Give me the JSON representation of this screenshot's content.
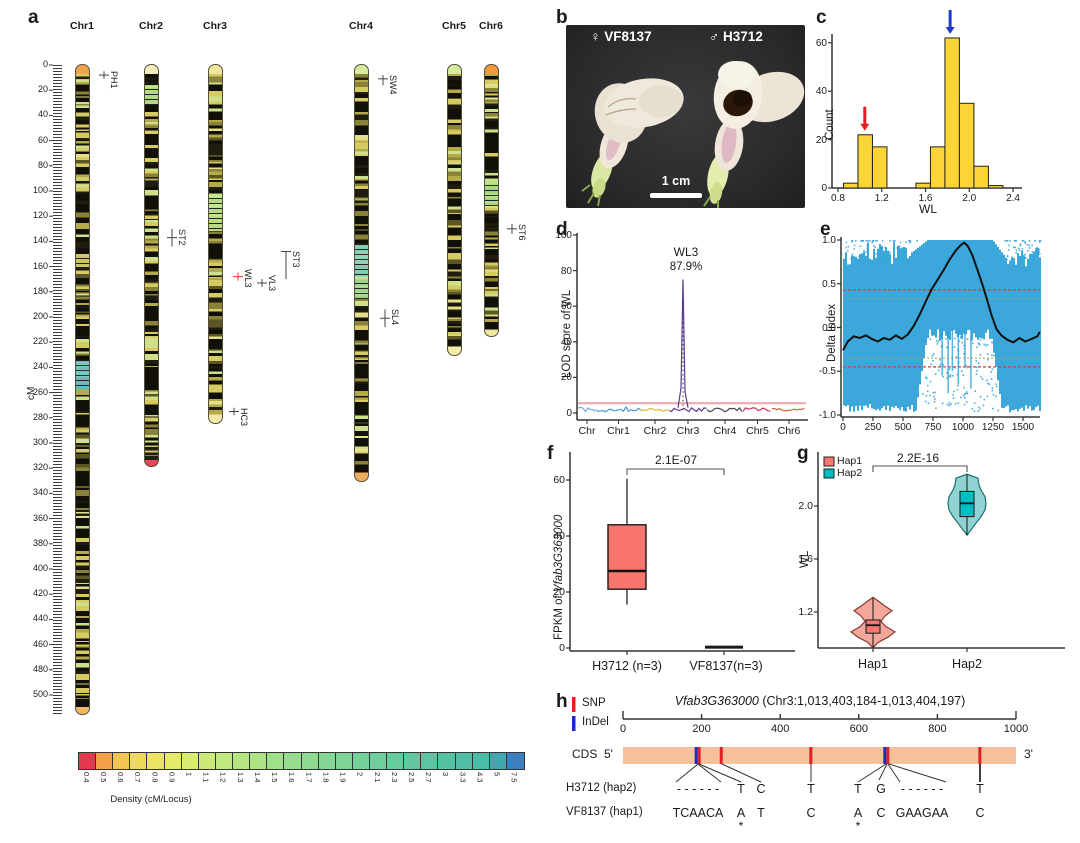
{
  "panels": {
    "a": "a",
    "b": "b",
    "c": "c",
    "d": "d",
    "e": "e",
    "f": "f",
    "g": "g",
    "h": "h"
  },
  "panel_a": {
    "axis_label": "cM",
    "ruler": {
      "label_start": 0,
      "label_end": 500,
      "label_step": 20,
      "max_cM": 515
    },
    "chromosomes": [
      {
        "name": "Chr1",
        "x": 82,
        "length_cM": 515,
        "top_tip": "#F0A24C",
        "bottom_tip": "#F0B964",
        "seed": 11,
        "bands": [
          {
            "start": 235,
            "end": 258,
            "color": "#6FC9C4"
          },
          {
            "start": 150,
            "end": 160,
            "color": "#D9D070"
          }
        ]
      },
      {
        "name": "Chr2",
        "x": 151,
        "length_cM": 318,
        "top_tip": "#F2EBC0",
        "bottom_tip": "#E8455C",
        "seed": 22,
        "bands": [
          {
            "start": 16,
            "end": 32,
            "color": "#BCE68C"
          }
        ]
      },
      {
        "name": "Chr3",
        "x": 215,
        "length_cM": 284,
        "top_tip": "#EFE6A0",
        "bottom_tip": "#F0EAA8",
        "seed": 33,
        "bands": [
          {
            "start": 102,
            "end": 132,
            "color": "#C4E88E"
          }
        ]
      },
      {
        "name": "Chr4",
        "x": 361,
        "length_cM": 330,
        "top_tip": "#D6EC9E",
        "bottom_tip": "#F2AC5E",
        "seed": 44,
        "bands": [
          {
            "start": 143,
            "end": 168,
            "color": "#8ED8C0"
          },
          {
            "start": 170,
            "end": 186,
            "color": "#A8E098"
          }
        ]
      },
      {
        "name": "Chr5",
        "x": 454,
        "length_cM": 230,
        "top_tip": "#D6EC9E",
        "bottom_tip": "#F2ECA8",
        "seed": 55,
        "bands": []
      },
      {
        "name": "Chr6",
        "x": 491,
        "length_cM": 215,
        "top_tip": "#F09A3E",
        "bottom_tip": "#F0E8A0",
        "seed": 66,
        "bands": [
          {
            "start": 92,
            "end": 112,
            "color": "#B2E388"
          }
        ]
      }
    ],
    "markers": [
      {
        "label": "PH1",
        "x": 104,
        "cM": 8,
        "span": [
          5,
          11
        ]
      },
      {
        "label": "ST2",
        "x": 172,
        "cM": 137,
        "span": [
          130,
          144
        ]
      },
      {
        "label": "ST3",
        "x": 286,
        "cM": 148,
        "span": [
          148,
          170
        ]
      },
      {
        "label": "WL3",
        "x": 238,
        "cM": 168,
        "red": true
      },
      {
        "label": "VL3",
        "x": 262,
        "cM": 173
      },
      {
        "label": "SW4",
        "x": 383,
        "cM": 11,
        "span": [
          8,
          16
        ]
      },
      {
        "label": "SL4",
        "x": 385,
        "cM": 201,
        "span": [
          194,
          208
        ]
      },
      {
        "label": "ST6",
        "x": 512,
        "cM": 130,
        "span": [
          126,
          134
        ]
      },
      {
        "label": "HC3",
        "x": 234,
        "cM": 275,
        "span": [
          272,
          278
        ]
      }
    ],
    "legend": {
      "title": "Density (cM/Locus)",
      "values": [
        "0.4",
        "0.5",
        "0.6",
        "0.7",
        "0.8",
        "0.9",
        "1",
        "1.1",
        "1.2",
        "1.3",
        "1.4",
        "1.5",
        "1.6",
        "1.7",
        "1.8",
        "1.9",
        "2",
        "2.1",
        "2.3",
        "2.5",
        "2.7",
        "3",
        "3.3",
        "4.3",
        "5",
        "7.5"
      ],
      "colors": [
        "#E23B4E",
        "#F6A04C",
        "#F2C355",
        "#EFD95C",
        "#EDE465",
        "#E4EA6C",
        "#D8EC72",
        "#CCEA78",
        "#C1E87D",
        "#B6E682",
        "#ABE386",
        "#A1E08A",
        "#97DD8E",
        "#8EDA91",
        "#85D794",
        "#7DD497",
        "#75D19A",
        "#6ECE9C",
        "#67CB9E",
        "#61C8A0",
        "#5BC5A2",
        "#55C2A4",
        "#50BFA6",
        "#4BBCA8",
        "#41A8B0",
        "#3C7EC0"
      ]
    }
  },
  "panel_b": {
    "female_label": "♀ VF8137",
    "male_label": "♂ H3712",
    "scale_label": "1 cm"
  },
  "chart_data": [
    {
      "id": "c",
      "type": "bar",
      "xlabel": "WL",
      "ylabel": "Count",
      "bin_start": 0.85,
      "bin_width": 0.1325,
      "counts": [
        2,
        22,
        17,
        0,
        0,
        2,
        17,
        62,
        35,
        9,
        1
      ],
      "x_ticks": [
        "0.8",
        "1.2",
        "1.6",
        "2.0",
        "2.4"
      ],
      "x_tick_vals": [
        0.8,
        1.2,
        1.6,
        2.0,
        2.4
      ],
      "y_ticks": [
        0,
        20,
        40,
        60
      ],
      "bar_color": "#FBD435",
      "arrows": [
        {
          "x": 1.045,
          "count": 22,
          "color": "#E02020",
          "name": "red-arrow"
        },
        {
          "x": 1.825,
          "count": 62,
          "color": "#2238C8",
          "name": "blue-arrow"
        }
      ]
    },
    {
      "id": "d",
      "type": "line",
      "ylabel": "LOD score of WL",
      "y_ticks": [
        0,
        20,
        40,
        60,
        80,
        100
      ],
      "categories": [
        "Chr",
        "Chr1",
        "Chr2",
        "Chr3",
        "Chr4",
        "Chr5",
        "Chr6"
      ],
      "segment_colors": [
        "#7AA8D8",
        "#4F97D0",
        "#E2B63C",
        "#5A3C8F",
        "#4A4A42",
        "#C23A70",
        "#D2622E"
      ],
      "threshold": 5.5,
      "threshold_color": "#F4A6B0",
      "peak": {
        "label": "WL3",
        "percent": "87.9%",
        "chr": "Chr3",
        "lod": 75
      }
    },
    {
      "id": "e",
      "type": "scatter",
      "ylabel": "Delta Index",
      "x_ticks": [
        0,
        250,
        500,
        750,
        1000,
        1250,
        1500
      ],
      "y_ticks": [
        "1.0",
        "0.5",
        "0.0",
        "-0.5",
        "-1.0"
      ],
      "y_tick_vals": [
        1.0,
        0.5,
        0.0,
        -0.5,
        -1.0
      ],
      "x_max": 1640,
      "point_color": "#2B9FD7",
      "thresholds": {
        "red_upper": 0.43,
        "red_lower": -0.45,
        "gray_upper": 0.33,
        "gray_lower": -0.35,
        "red_color": "#C94040",
        "gray_color": "#A8A060"
      },
      "smooth_line": [
        [
          0,
          -0.26
        ],
        [
          40,
          -0.16
        ],
        [
          90,
          -0.1
        ],
        [
          140,
          -0.12
        ],
        [
          190,
          -0.09
        ],
        [
          240,
          -0.13
        ],
        [
          290,
          -0.16
        ],
        [
          340,
          -0.12
        ],
        [
          390,
          -0.14
        ],
        [
          440,
          -0.09
        ],
        [
          490,
          -0.13
        ],
        [
          540,
          -0.08
        ],
        [
          590,
          0.02
        ],
        [
          640,
          0.15
        ],
        [
          690,
          0.3
        ],
        [
          740,
          0.44
        ],
        [
          790,
          0.55
        ],
        [
          840,
          0.66
        ],
        [
          890,
          0.78
        ],
        [
          940,
          0.88
        ],
        [
          980,
          0.94
        ],
        [
          1010,
          0.97
        ],
        [
          1040,
          0.93
        ],
        [
          1080,
          0.82
        ],
        [
          1120,
          0.66
        ],
        [
          1160,
          0.5
        ],
        [
          1200,
          0.32
        ],
        [
          1240,
          0.13
        ],
        [
          1280,
          -0.02
        ],
        [
          1320,
          -0.09
        ],
        [
          1370,
          -0.14
        ],
        [
          1420,
          -0.17
        ],
        [
          1470,
          -0.12
        ],
        [
          1520,
          -0.16
        ],
        [
          1570,
          -0.13
        ],
        [
          1620,
          -0.1
        ],
        [
          1640,
          -0.05
        ]
      ]
    },
    {
      "id": "f",
      "type": "box",
      "ylabel_prefix": "FPKM of ",
      "ylabel_gene": "Vfab3G363000",
      "significance": "2.1E-07",
      "categories": [
        "H3712 (n=3)",
        "VF8137(n=3)"
      ],
      "y_ticks": [
        0,
        20,
        40,
        60
      ],
      "box_color": "#F8766D",
      "boxes": [
        {
          "min": 15.5,
          "q1": 21,
          "median": 27.5,
          "q3": 44,
          "max": 60.5
        },
        {
          "min": 0,
          "q1": 0,
          "median": 0.3,
          "q3": 0.6,
          "max": 1
        }
      ]
    },
    {
      "id": "g",
      "type": "violin",
      "ylabel": "WL",
      "significance": "2.2E-16",
      "categories": [
        "Hap1",
        "Hap2"
      ],
      "groups": [
        "Hap1",
        "Hap2"
      ],
      "group_colors": [
        "#F8766D",
        "#00BFC4"
      ],
      "violin_fills": [
        "#F4A79B",
        "#8FD4D2"
      ],
      "y_ticks": [
        "1.2",
        "1.6",
        "2.0"
      ],
      "y_tick_vals": [
        1.2,
        1.6,
        2.0
      ],
      "violins": [
        {
          "range": [
            0.93,
            1.31
          ],
          "q1": 1.04,
          "median": 1.1,
          "q3": 1.14
        },
        {
          "range": [
            1.78,
            2.24
          ],
          "q1": 1.92,
          "median": 2.02,
          "q3": 2.11
        }
      ]
    },
    {
      "id": "h",
      "type": "diagram",
      "legend_snp": "SNP",
      "legend_indel": "InDel",
      "snp_color": "#E02020",
      "indel_color": "#1F28C8",
      "gene": "Vfab3G363000",
      "region": " (Chr3:1,013,403,184-1,013,404,197)",
      "ruler_ticks": [
        0,
        200,
        400,
        600,
        800,
        1000
      ],
      "cds_label": "CDS",
      "five_prime": "5'",
      "three_prime": "3'",
      "cds_color": "#F6C09A",
      "variants": [
        {
          "pos": 190,
          "kind": "indel+snp"
        },
        {
          "pos": 250,
          "kind": "snp"
        },
        {
          "pos": 478,
          "kind": "snp"
        },
        {
          "pos": 670,
          "kind": "indel+snp"
        },
        {
          "pos": 908,
          "kind": "snp"
        }
      ],
      "hap2_label": "H3712 (hap2)",
      "hap1_label": "VF8137 (hap1)",
      "hap2_row": [
        {
          "x": 698,
          "t": "- - - - - -"
        },
        {
          "x": 741,
          "t": "T"
        },
        {
          "x": 761,
          "t": "C"
        },
        {
          "x": 811,
          "t": "T"
        },
        {
          "x": 858,
          "t": "T"
        },
        {
          "x": 881,
          "t": "G"
        },
        {
          "x": 922,
          "t": "- - - - - -"
        },
        {
          "x": 980,
          "t": "T"
        }
      ],
      "hap1_row": [
        {
          "x": 698,
          "t": "TCAACA"
        },
        {
          "x": 741,
          "t": "A",
          "star": true
        },
        {
          "x": 761,
          "t": "T"
        },
        {
          "x": 811,
          "t": "C"
        },
        {
          "x": 858,
          "t": "A",
          "star": true
        },
        {
          "x": 881,
          "t": "C"
        },
        {
          "x": 922,
          "t": "GAAGAA"
        },
        {
          "x": 980,
          "t": "C"
        }
      ],
      "star": "*"
    }
  ]
}
